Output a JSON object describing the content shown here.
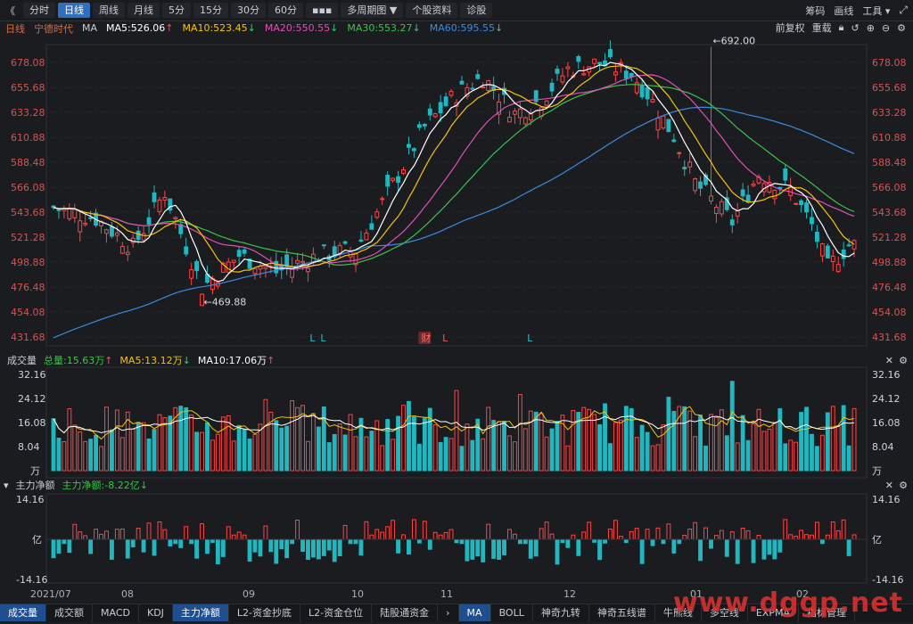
{
  "toolbar": {
    "back": "《",
    "tabs": [
      "分时",
      "日线",
      "周线",
      "月线",
      "5分",
      "15分",
      "30分",
      "60分",
      "▪▪▪",
      "多周期图 ▼",
      "个股资料",
      "诊股"
    ],
    "active_tab": "日线",
    "right_items": [
      "筹码",
      "画线",
      "工具 ▾"
    ]
  },
  "info": {
    "period": "日线",
    "name": "宁德时代",
    "indicator": "MA",
    "ma": [
      {
        "label": "MA5:526.06",
        "arrow": "↑",
        "color": "#ffffff",
        "arrow_color": "#ff4c4c"
      },
      {
        "label": "MA10:523.45",
        "arrow": "↓",
        "color": "#f2c30f",
        "arrow_color": "#2fd06e"
      },
      {
        "label": "MA20:550.55",
        "arrow": "↓",
        "color": "#e04fb8",
        "arrow_color": "#2fd06e"
      },
      {
        "label": "MA30:553.27",
        "arrow": "↓",
        "color": "#3bc24a",
        "arrow_color": "#2fd06e"
      },
      {
        "label": "MA60:595.55",
        "arrow": "↓",
        "color": "#3a8be0",
        "arrow_color": "#2fd06e"
      }
    ],
    "right": [
      "前复权",
      "重载"
    ]
  },
  "volume_panel": {
    "title": "成交量",
    "total": "总量:15.63万",
    "total_arrow": "↑",
    "ma5": "MA5:13.12万",
    "ma5_arrow": "↓",
    "ma10": "MA10:17.06万",
    "ma10_arrow": "↑"
  },
  "flow_panel": {
    "title": "主力净额",
    "value": "主力净额:-8.22亿",
    "arrow": "↓"
  },
  "bottom_tabs": [
    "成交量",
    "成交额",
    "MACD",
    "KDJ",
    "主力净额",
    "L2-资金抄底",
    "L2-资金仓位",
    "陆股通资金",
    "›",
    "MA",
    "BOLL",
    "神奇九转",
    "神奇五线谱",
    "牛熊线",
    "多空线",
    "EXPMA",
    "指标管理"
  ],
  "bottom_active": [
    "成交量",
    "主力净额",
    "MA"
  ],
  "x_labels": [
    "2021/07",
    "08",
    "09",
    "10",
    "11",
    "12",
    "01",
    "02"
  ],
  "watermark": "www.dggp.net",
  "chart_data": {
    "type": "candlestick",
    "price_axis": {
      "ticks": [
        "678.08",
        "655.68",
        "633.28",
        "610.88",
        "588.48",
        "566.08",
        "543.68",
        "521.28",
        "498.88",
        "476.48",
        "454.08",
        "431.68"
      ]
    },
    "volume_axis": {
      "ticks": [
        "32.16",
        "24.12",
        "16.08",
        "8.04",
        "万"
      ]
    },
    "flow_axis": {
      "ticks": [
        "14.16",
        "亿",
        "-14.16"
      ]
    },
    "annotations": [
      {
        "text": "←692.00",
        "x_index": 124,
        "price": 692.0
      },
      {
        "text": "←469.88",
        "x_index": 28,
        "price": 469.88
      }
    ],
    "markers": [
      {
        "text": "L",
        "x_index": 49,
        "color": "#28c2cc"
      },
      {
        "text": "L",
        "x_index": 51,
        "color": "#28c2cc"
      },
      {
        "text": "财",
        "x_index": 70,
        "color": "#ff6b6b",
        "box": true
      },
      {
        "text": "L",
        "x_index": 74,
        "color": "#ff5555"
      },
      {
        "text": "L",
        "x_index": 90,
        "color": "#28c2cc"
      }
    ],
    "ohlc_key_points": [
      [
        0,
        548
      ],
      [
        8,
        538
      ],
      [
        15,
        512
      ],
      [
        21,
        562
      ],
      [
        28,
        476
      ],
      [
        35,
        505
      ],
      [
        42,
        490
      ],
      [
        50,
        505
      ],
      [
        57,
        510
      ],
      [
        63,
        560
      ],
      [
        70,
        620
      ],
      [
        76,
        650
      ],
      [
        81,
        665
      ],
      [
        87,
        632
      ],
      [
        92,
        645
      ],
      [
        97,
        672
      ],
      [
        103,
        678
      ],
      [
        109,
        668
      ],
      [
        112,
        650
      ],
      [
        117,
        612
      ],
      [
        121,
        570
      ],
      [
        128,
        535
      ],
      [
        133,
        578
      ],
      [
        139,
        564
      ],
      [
        143,
        532
      ],
      [
        146,
        494
      ],
      [
        150,
        514
      ]
    ],
    "ma_lines": [
      {
        "name": "MA60",
        "color": "#3a8be0"
      },
      {
        "name": "MA30",
        "color": "#3bc24a"
      },
      {
        "name": "MA20",
        "color": "#e04fb8"
      },
      {
        "name": "MA10",
        "color": "#f2c30f"
      },
      {
        "name": "MA5",
        "color": "#ffffff"
      }
    ]
  }
}
